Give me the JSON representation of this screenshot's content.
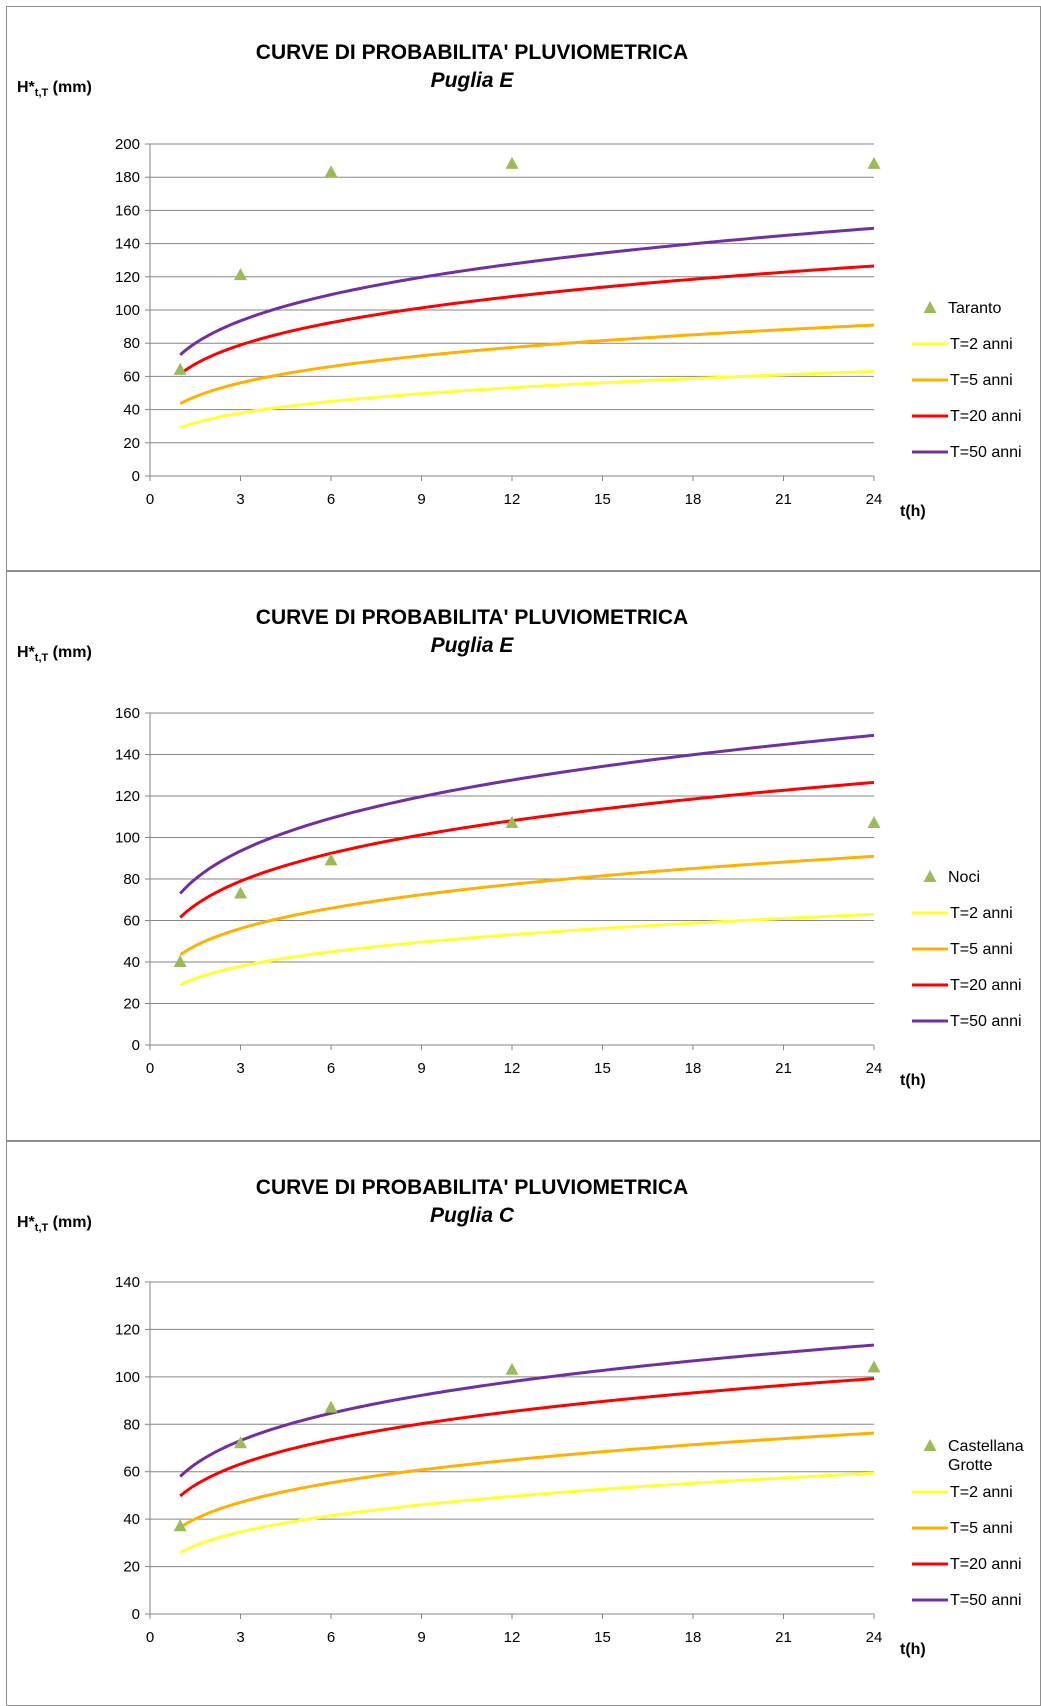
{
  "chart_data": [
    {
      "type": "line",
      "title": "CURVE DI PROBABILITA' PLUVIOMETRICA",
      "subtitle": "Puglia E",
      "ylabel": "H*",
      "ylabel_sub": "t,T",
      "ylabel_unit": " (mm)",
      "xlabel": "t(h)",
      "xlim": [
        0,
        24
      ],
      "ylim": [
        0,
        200
      ],
      "x_ticks": [
        0,
        3,
        6,
        9,
        12,
        15,
        18,
        21,
        24
      ],
      "y_ticks": [
        0,
        20,
        40,
        60,
        80,
        100,
        120,
        140,
        160,
        180,
        200
      ],
      "grid": "horizontal",
      "legend": "right",
      "scatter": {
        "name": "Taranto",
        "color": "#9bbb59",
        "x": [
          1,
          3,
          6,
          12,
          24
        ],
        "y": [
          64,
          121,
          183,
          188,
          188
        ]
      },
      "series": [
        {
          "name": "T=2 anni",
          "color": "#ffff33",
          "a": 29,
          "n": 0.244
        },
        {
          "name": "T=5 anni",
          "color": "#ffb000",
          "a": 43.5,
          "n": 0.232
        },
        {
          "name": "T=20 anni",
          "color": "#ff0000",
          "a": 61.5,
          "n": 0.227
        },
        {
          "name": "T=50 anni",
          "color": "#7030a0",
          "a": 73,
          "n": 0.225
        }
      ]
    },
    {
      "type": "line",
      "title": "CURVE DI PROBABILITA' PLUVIOMETRICA",
      "subtitle": "Puglia E",
      "ylabel": "H*",
      "ylabel_sub": "t,T",
      "ylabel_unit": " (mm)",
      "xlabel": "t(h)",
      "xlim": [
        0,
        24
      ],
      "ylim": [
        0,
        160
      ],
      "x_ticks": [
        0,
        3,
        6,
        9,
        12,
        15,
        18,
        21,
        24
      ],
      "y_ticks": [
        0,
        20,
        40,
        60,
        80,
        100,
        120,
        140,
        160
      ],
      "grid": "horizontal",
      "legend": "right",
      "scatter": {
        "name": "Noci",
        "color": "#9bbb59",
        "x": [
          1,
          3,
          6,
          12,
          24
        ],
        "y": [
          40,
          73,
          89,
          107,
          107
        ]
      },
      "series": [
        {
          "name": "T=2 anni",
          "color": "#ffff33",
          "a": 29,
          "n": 0.244
        },
        {
          "name": "T=5 anni",
          "color": "#ffb000",
          "a": 43.5,
          "n": 0.232
        },
        {
          "name": "T=20 anni",
          "color": "#ff0000",
          "a": 61.5,
          "n": 0.227
        },
        {
          "name": "T=50 anni",
          "color": "#7030a0",
          "a": 73,
          "n": 0.225
        }
      ]
    },
    {
      "type": "line",
      "title": "CURVE DI PROBABILITA' PLUVIOMETRICA",
      "subtitle": "Puglia C",
      "ylabel": "H*",
      "ylabel_sub": "t,T",
      "ylabel_unit": " (mm)",
      "xlabel": "t(h)",
      "xlim": [
        0,
        24
      ],
      "ylim": [
        0,
        140
      ],
      "x_ticks": [
        0,
        3,
        6,
        9,
        12,
        15,
        18,
        21,
        24
      ],
      "y_ticks": [
        0,
        20,
        40,
        60,
        80,
        100,
        120,
        140
      ],
      "grid": "horizontal",
      "legend": "right",
      "scatter": {
        "name": "Castellana Grotte",
        "color": "#9bbb59",
        "x": [
          1,
          3,
          6,
          12,
          24
        ],
        "y": [
          37,
          72,
          87,
          103,
          104
        ]
      },
      "series": [
        {
          "name": "T=2 anni",
          "color": "#ffff33",
          "a": 26,
          "n": 0.26
        },
        {
          "name": "T=5 anni",
          "color": "#ffb000",
          "a": 36.5,
          "n": 0.232
        },
        {
          "name": "T=20 anni",
          "color": "#ff0000",
          "a": 49.8,
          "n": 0.217
        },
        {
          "name": "T=50 anni",
          "color": "#7030a0",
          "a": 58,
          "n": 0.211
        }
      ]
    }
  ]
}
